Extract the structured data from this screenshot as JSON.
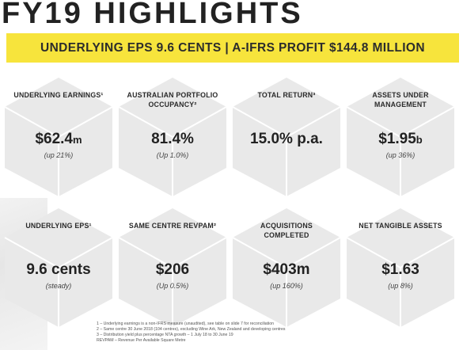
{
  "title": "FY19 HIGHLIGHTS",
  "banner": "UNDERLYING EPS 9.6 CENTS  |  A-IFRS PROFIT $144.8 MILLION",
  "colors": {
    "banner": "#f7e43c",
    "tile_face": "#e8e8e8",
    "tile_edge": "#ffffff"
  },
  "tiles": [
    {
      "label": "UNDERLYING EARNINGS¹",
      "value": "$62.4",
      "unit": "m",
      "sub": "(up 21%)"
    },
    {
      "label": "AUSTRALIAN PORTFOLIO OCCUPANCY²",
      "value": "81.4%",
      "unit": "",
      "sub": "(Up 1.0%)"
    },
    {
      "label": "TOTAL RETURN³",
      "value": "15.0% p.a.",
      "unit": "",
      "sub": ""
    },
    {
      "label": "ASSETS UNDER MANAGEMENT",
      "value": "$1.95",
      "unit": "b",
      "sub": "(up 36%)"
    },
    {
      "label": "UNDERLYING EPS¹",
      "value": "9.6 cents",
      "unit": "",
      "sub": "(steady)"
    },
    {
      "label": "SAME CENTRE REVPAM²",
      "value": "$206",
      "unit": "",
      "sub": "(Up 0.5%)"
    },
    {
      "label": "ACQUISITIONS COMPLETED",
      "value": "$403m",
      "unit": "",
      "sub": "(up 160%)"
    },
    {
      "label": "NET TANGIBLE ASSETS",
      "value": "$1.63",
      "unit": "",
      "sub": "(up 8%)"
    }
  ],
  "footnotes": [
    "1 – Underlying earnings is a non-IFRS measure (unaudited), see table on slide 7 for reconciliation",
    "2 – Same centre 30 June 2018 (104 centres), excluding Wine Ark, New Zealand and developing centres",
    "3 – Distribution yield plus percentage NTA growth – 1 July 18 to 30 June 19",
    "REVPAM – Revenue Per Available Square Metre"
  ]
}
